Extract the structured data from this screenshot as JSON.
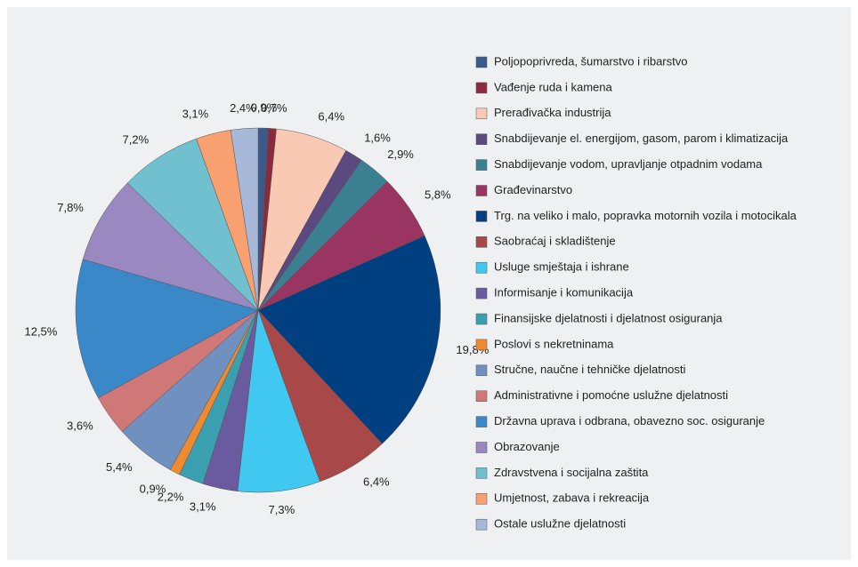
{
  "chart_data": {
    "type": "pie",
    "categories": [
      "Poljopoprivreda, šumarstvo i ribarstvo",
      "Vađenje ruda i kamena",
      "Prerađivačka industrija",
      "Snabdijevanje el. energijom, gasom, parom i klimatizacija",
      "Snabdijevanje vodom, upravljanje otpadnim vodama",
      "Građevinarstvo",
      "Trg. na veliko i malo, popravka motornih vozila i motocikala",
      "Saobraćaj i skladištenje",
      "Usluge smještaja i ishrane",
      "Informisanje i komunikacija",
      "Finansijske djelatnosti i djelatnost osiguranja",
      "Poslovi s nekretninama",
      "Stručne, naučne i tehničke djelatnosti",
      "Administrativne i pomoćne uslužne djelatnosti",
      "Državna uprava i odbrana, obavezno soc. osiguranje",
      "Obrazovanje",
      "Zdravstvena i socijalna zaštita",
      "Umjetnost, zabava i rekreacija",
      "Ostale uslužne djelatnosti"
    ],
    "values": [
      0.9,
      0.7,
      6.4,
      1.6,
      2.9,
      5.8,
      19.8,
      6.4,
      7.3,
      3.1,
      2.2,
      0.9,
      5.4,
      3.6,
      12.5,
      7.8,
      7.2,
      3.1,
      2.4
    ],
    "value_labels": [
      "0,9%",
      "0,7%",
      "6,4%",
      "1,6%",
      "2,9%",
      "5,8%",
      "19,8%",
      "6,4%",
      "7,3%",
      "3,1%",
      "2,2%",
      "0,9%",
      "5,4%",
      "3,6%",
      "12,5%",
      "7,8%",
      "7,2%",
      "3,1%",
      "2,4%"
    ],
    "colors": [
      "#3a5a8c",
      "#8b2a3a",
      "#f9c9b4",
      "#5a4a80",
      "#3a8090",
      "#9a3460",
      "#003f80",
      "#a84848",
      "#40c8f0",
      "#6a5aa0",
      "#3aa0b0",
      "#f08a30",
      "#7090c0",
      "#d07878",
      "#3a88c8",
      "#9a88c0",
      "#70c0d0",
      "#f8a070",
      "#a8b8d8"
    ],
    "legend": "right"
  }
}
